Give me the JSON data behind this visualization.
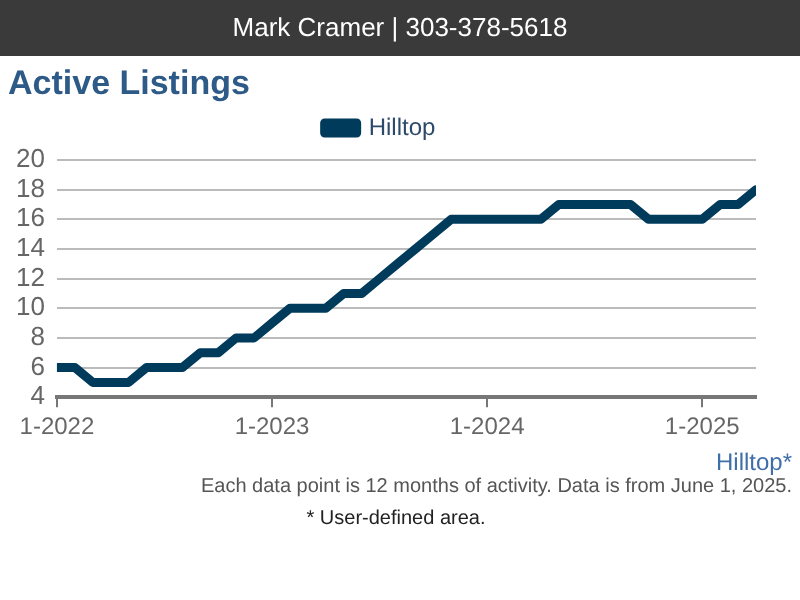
{
  "chart_data": {
    "type": "line",
    "title": "Active Listings",
    "x": [
      "2022-01",
      "2022-02",
      "2022-03",
      "2022-04",
      "2022-05",
      "2022-06",
      "2022-07",
      "2022-08",
      "2022-09",
      "2022-10",
      "2022-11",
      "2022-12",
      "2023-01",
      "2023-02",
      "2023-03",
      "2023-04",
      "2023-05",
      "2023-06",
      "2023-07",
      "2023-08",
      "2023-09",
      "2023-10",
      "2023-11",
      "2023-12",
      "2024-01",
      "2024-02",
      "2024-03",
      "2024-04",
      "2024-05",
      "2024-06",
      "2024-07",
      "2024-08",
      "2024-09",
      "2024-10",
      "2024-11",
      "2024-12",
      "2025-01",
      "2025-02",
      "2025-03",
      "2025-04"
    ],
    "series": [
      {
        "name": "Hilltop",
        "color": "#003b5c",
        "values": [
          6,
          6,
          5,
          5,
          5,
          6,
          6,
          6,
          7,
          7,
          8,
          8,
          9,
          10,
          10,
          10,
          11,
          11,
          12,
          13,
          14,
          15,
          16,
          16,
          16,
          16,
          16,
          16,
          17,
          17,
          17,
          17,
          17,
          16,
          16,
          16,
          16,
          17,
          17,
          18
        ]
      }
    ],
    "xlim": [
      "2022-01",
      "2025-04"
    ],
    "xticks": [
      {
        "value": "2022-01",
        "label": "1-2022"
      },
      {
        "value": "2023-01",
        "label": "1-2023"
      },
      {
        "value": "2024-01",
        "label": "1-2024"
      },
      {
        "value": "2025-01",
        "label": "1-2025"
      }
    ],
    "ylim": [
      4,
      20
    ],
    "yticks": [
      4,
      6,
      8,
      10,
      12,
      14,
      16,
      18,
      20
    ],
    "grid": "y",
    "legend": "top",
    "marker": "none",
    "line_style": "solid",
    "annotations": [
      "Mark Cramer | 303-378-5618",
      "Hilltop*",
      "Each data point is 12 months of activity. Data is from June 1, 2025.",
      "* User-defined area."
    ]
  }
}
